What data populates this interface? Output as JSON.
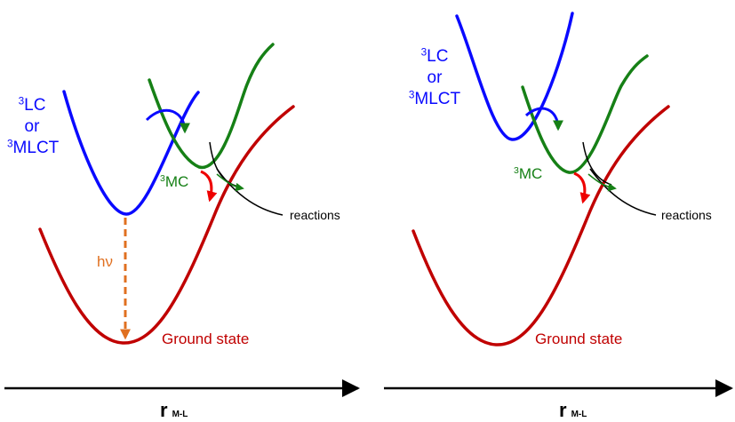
{
  "colors": {
    "triplet_curve": "#0a0aff",
    "mc_curve": "#168016",
    "ground_curve": "#c00000",
    "reaction_curve": "#000000",
    "emission_arrow": "#e07020",
    "red_arrow": "#ee0000"
  },
  "panels": [
    {
      "triplet_label": {
        "sup1": "3",
        "line1": "LC",
        "line2": "or",
        "sup3": "3",
        "line3": "MLCT"
      },
      "mc_label": {
        "sup": "3",
        "text": "MC"
      },
      "reactions_label": "reactions",
      "ground_label": "Ground state",
      "emission_label": "hν",
      "axis": {
        "symbol": "r",
        "subscript": "M-L"
      }
    },
    {
      "triplet_label": {
        "sup1": "3",
        "line1": "LC",
        "line2": "or",
        "sup3": "3",
        "line3": "MLCT"
      },
      "mc_label": {
        "sup": "3",
        "text": "MC"
      },
      "reactions_label": "reactions",
      "ground_label": "Ground state",
      "axis": {
        "symbol": "r",
        "subscript": "M-L"
      }
    }
  ]
}
